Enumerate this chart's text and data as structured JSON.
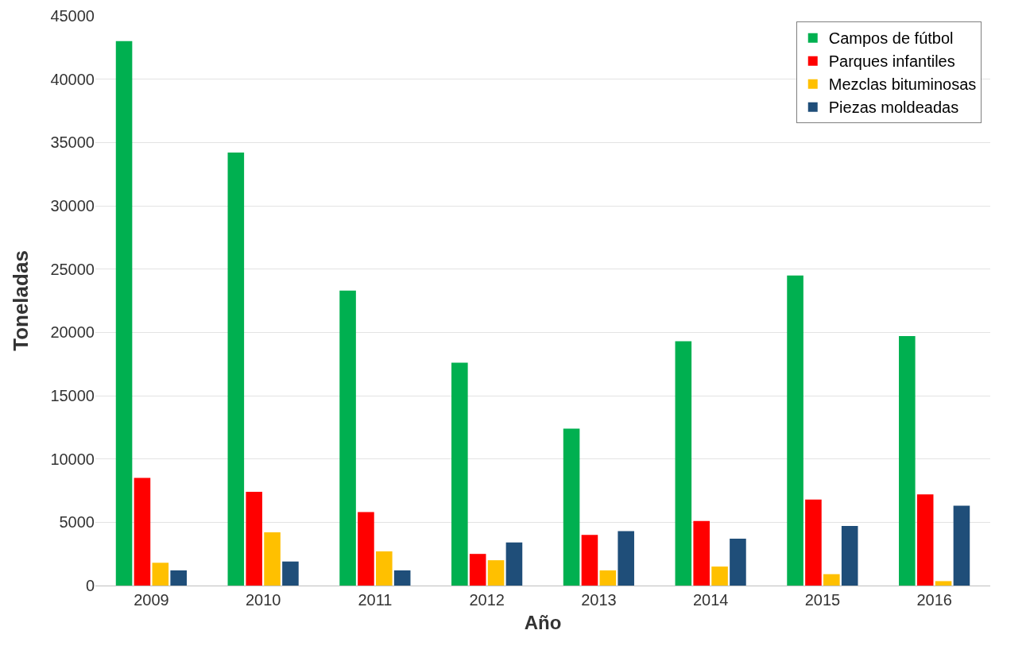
{
  "chart_data": {
    "type": "bar",
    "xlabel": "Año",
    "ylabel": "Toneladas",
    "categories": [
      "2009",
      "2010",
      "2011",
      "2012",
      "2013",
      "2014",
      "2015",
      "2016"
    ],
    "series": [
      {
        "name": "Campos de fútbol",
        "color": "#00b050",
        "values": [
          43000,
          34200,
          23300,
          17600,
          12400,
          19300,
          24500,
          19700
        ]
      },
      {
        "name": "Parques infantiles",
        "color": "#ff0000",
        "values": [
          8500,
          7400,
          5800,
          2500,
          4000,
          5100,
          6800,
          7200
        ]
      },
      {
        "name": "Mezclas bituminosas",
        "color": "#ffc000",
        "values": [
          1800,
          4200,
          2700,
          2000,
          1200,
          1500,
          900,
          350
        ]
      },
      {
        "name": "Piezas moldeadas",
        "color": "#1f4e79",
        "values": [
          1200,
          1900,
          1200,
          3400,
          4300,
          3700,
          4700,
          6300
        ]
      }
    ],
    "ylim": [
      0,
      45000
    ],
    "yticks": [
      0,
      5000,
      10000,
      15000,
      20000,
      25000,
      30000,
      35000,
      40000,
      45000
    ],
    "grid": "y",
    "legend": "top right"
  }
}
